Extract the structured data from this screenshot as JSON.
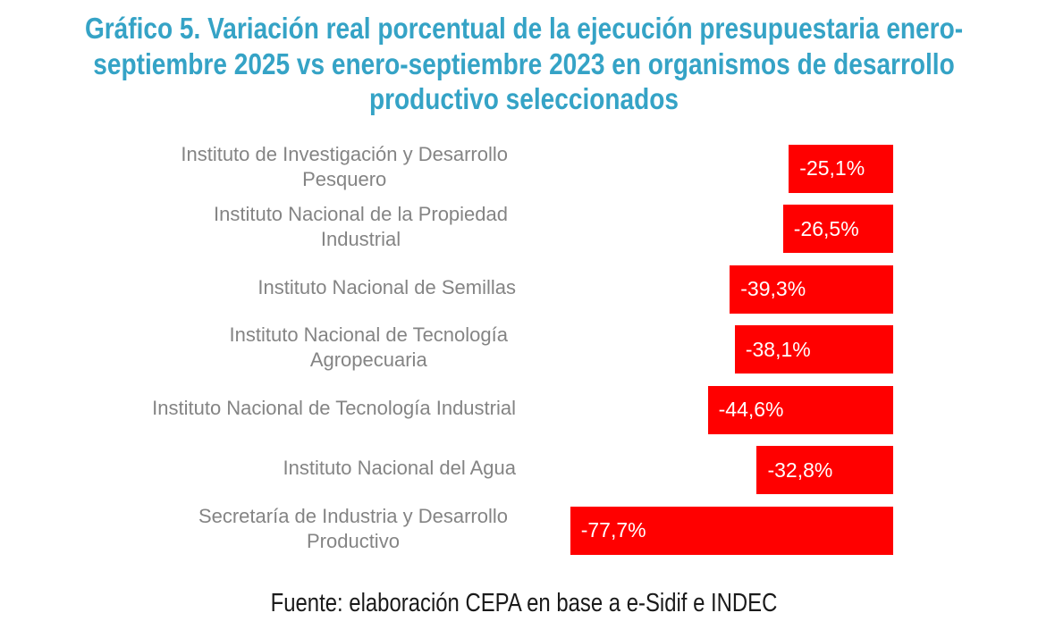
{
  "title": {
    "lines": [
      "Gráfico 5. Variación real porcentual de la ejecución presupuestaria enero-",
      "septiembre 2025 vs enero-septiembre 2023 en organismos de desarrollo",
      "productivo seleccionados"
    ],
    "color": "#35A3C6"
  },
  "footer": {
    "text": "Fuente: elaboración CEPA en base a e-Sidif e INDEC",
    "color": "#1A1A1A"
  },
  "chart_data": {
    "type": "bar",
    "orientation": "horizontal",
    "title": "Gráfico 5. Variación real porcentual de la ejecución presupuestaria enero-septiembre 2025 vs enero-septiembre 2023 en organismos de desarrollo productivo seleccionados",
    "xlabel": "",
    "ylabel": "",
    "unit": "%",
    "axis_visible": false,
    "grid": false,
    "legend": false,
    "bar_color": "#FF0000",
    "category_label_color": "#848484",
    "value_label_color": "#FFFFFF",
    "categories": [
      "Instituto de Investigación y Desarrollo Pesquero",
      "Instituto Nacional de la Propiedad Industrial",
      "Instituto Nacional de Semillas",
      "Instituto Nacional de Tecnología Agropecuaria",
      "Instituto Nacional de Tecnología Industrial",
      "Instituto Nacional del Agua",
      "Secretaría de Industria y Desarrollo Productivo"
    ],
    "category_lines": [
      [
        "Instituto de Investigación y Desarrollo",
        "Pesquero"
      ],
      [
        "Instituto Nacional de la Propiedad",
        "Industrial"
      ],
      [
        "Instituto Nacional de Semillas"
      ],
      [
        "Instituto Nacional de Tecnología",
        "Agropecuaria"
      ],
      [
        "Instituto Nacional de Tecnología Industrial"
      ],
      [
        "Instituto Nacional del Agua"
      ],
      [
        "Secretaría de Industria y Desarrollo",
        "Productivo"
      ]
    ],
    "values": [
      -25.1,
      -26.5,
      -39.3,
      -38.1,
      -44.6,
      -32.8,
      -77.7
    ],
    "value_labels": [
      "-25,1%",
      "-26,5%",
      "-39,3%",
      "-38,1%",
      "-44,6%",
      "-32,8%",
      "-77,7%"
    ]
  }
}
